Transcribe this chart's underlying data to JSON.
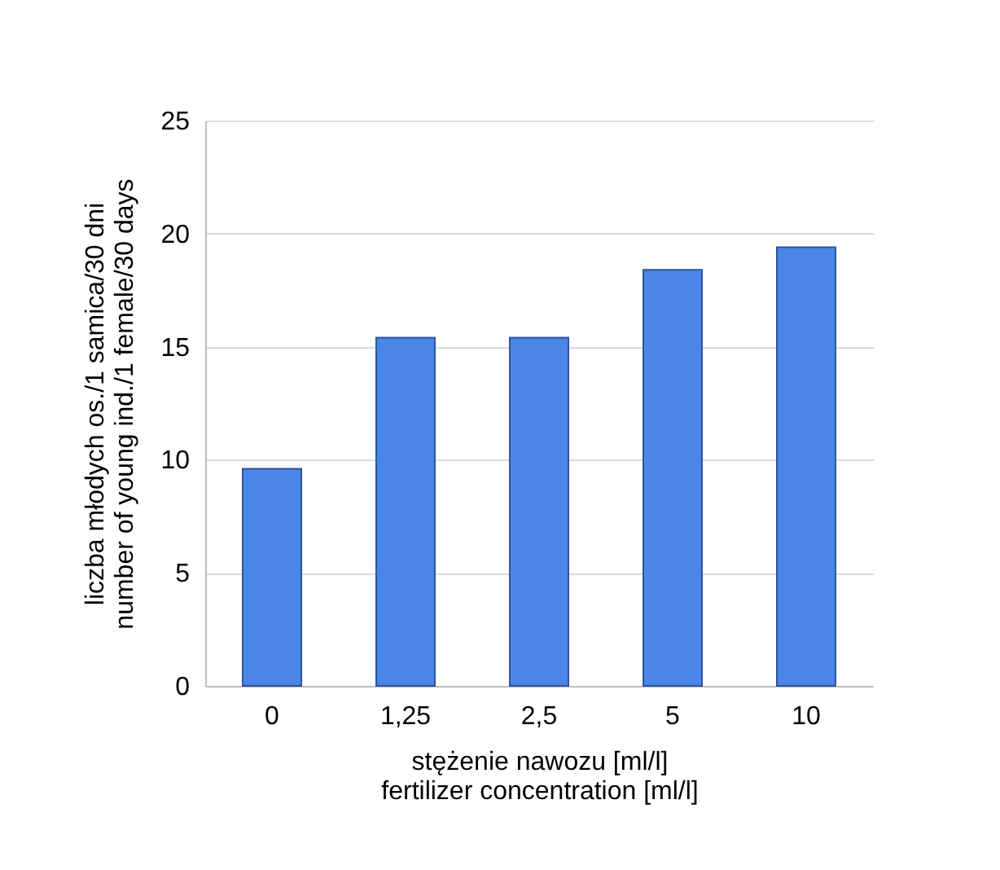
{
  "chart_data": {
    "type": "bar",
    "xlabel": "stężenie nawozu [ml/l]\nfertilizer concentration [ml/l]",
    "ylabel": "liczba młodych os./1 samica/30 dni\nnumber of young ind./1 female/30 days",
    "categories": [
      "0",
      "1,25",
      "2,5",
      "5",
      "10"
    ],
    "values": [
      9.6,
      15.4,
      15.4,
      18.4,
      19.4
    ],
    "color": "#4a86e8",
    "ylim": [
      0,
      25
    ],
    "yticks": [
      0,
      5,
      10,
      15,
      20,
      25
    ],
    "grid": "y"
  }
}
